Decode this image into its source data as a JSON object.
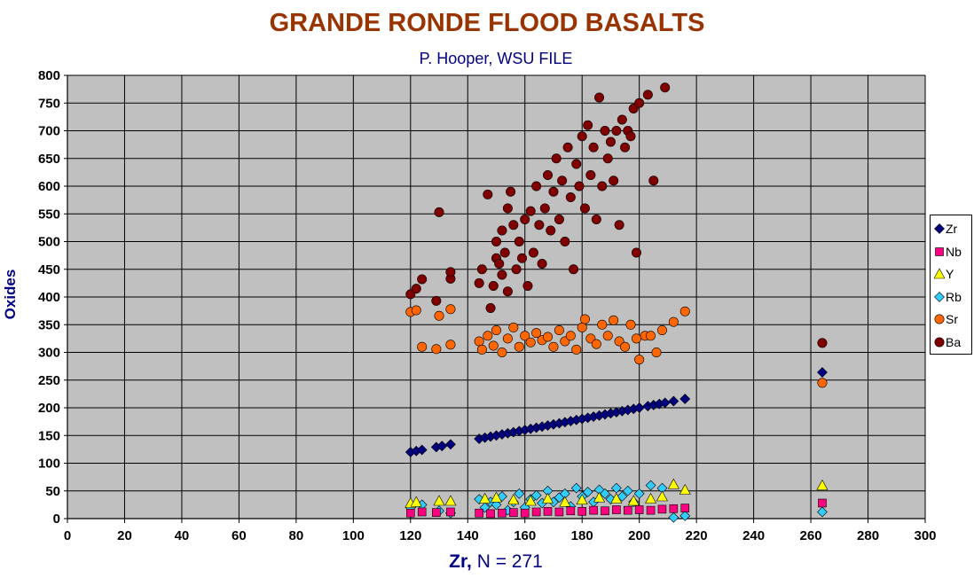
{
  "chart_data": {
    "type": "scatter",
    "title": "GRANDE RONDE FLOOD BASALTS",
    "subtitle_author": "P. Hooper,",
    "subtitle_org": "WSU FILE",
    "xlabel_bold": "Zr,",
    "xlabel_rest": "N = 271",
    "ylabel": "Oxides",
    "xlim": [
      0,
      300
    ],
    "ylim": [
      0,
      800
    ],
    "xticks": [
      0,
      20,
      40,
      60,
      80,
      100,
      120,
      140,
      160,
      180,
      200,
      220,
      240,
      260,
      280,
      300
    ],
    "yticks": [
      0,
      50,
      100,
      150,
      200,
      250,
      300,
      350,
      400,
      450,
      500,
      550,
      600,
      650,
      700,
      750,
      800
    ],
    "grid": true,
    "legend_position": "right",
    "colors": {
      "plot_bg": "#c0c0c0",
      "grid": "#000000",
      "Zr": "#000080",
      "Nb": "#ff0080",
      "Y": "#ffff00",
      "Rb": "#33ccff",
      "Sr": "#ff6600",
      "Ba": "#800000"
    },
    "series": [
      {
        "name": "Zr",
        "marker": "diamond",
        "points": [
          [
            120,
            120
          ],
          [
            122,
            122
          ],
          [
            124,
            124
          ],
          [
            129,
            129
          ],
          [
            131,
            131
          ],
          [
            134,
            134
          ],
          [
            144,
            144
          ],
          [
            146,
            146
          ],
          [
            148,
            148
          ],
          [
            150,
            150
          ],
          [
            152,
            152
          ],
          [
            154,
            154
          ],
          [
            156,
            156
          ],
          [
            158,
            158
          ],
          [
            160,
            160
          ],
          [
            162,
            162
          ],
          [
            164,
            164
          ],
          [
            166,
            166
          ],
          [
            168,
            168
          ],
          [
            170,
            170
          ],
          [
            172,
            172
          ],
          [
            174,
            174
          ],
          [
            176,
            176
          ],
          [
            178,
            178
          ],
          [
            180,
            180
          ],
          [
            182,
            182
          ],
          [
            184,
            184
          ],
          [
            186,
            186
          ],
          [
            188,
            188
          ],
          [
            190,
            190
          ],
          [
            192,
            192
          ],
          [
            194,
            194
          ],
          [
            196,
            196
          ],
          [
            198,
            198
          ],
          [
            200,
            200
          ],
          [
            203,
            203
          ],
          [
            205,
            205
          ],
          [
            207,
            207
          ],
          [
            209,
            209
          ],
          [
            212,
            212
          ],
          [
            216,
            216
          ],
          [
            264,
            264
          ]
        ]
      },
      {
        "name": "Nb",
        "marker": "square",
        "points": [
          [
            120,
            10
          ],
          [
            124,
            12
          ],
          [
            129,
            11
          ],
          [
            134,
            12
          ],
          [
            144,
            10
          ],
          [
            148,
            9
          ],
          [
            152,
            10
          ],
          [
            156,
            11
          ],
          [
            160,
            10
          ],
          [
            164,
            12
          ],
          [
            168,
            13
          ],
          [
            172,
            12
          ],
          [
            176,
            14
          ],
          [
            180,
            13
          ],
          [
            184,
            15
          ],
          [
            188,
            14
          ],
          [
            192,
            16
          ],
          [
            196,
            15
          ],
          [
            200,
            16
          ],
          [
            204,
            15
          ],
          [
            208,
            17
          ],
          [
            212,
            18
          ],
          [
            216,
            19
          ],
          [
            264,
            28
          ]
        ]
      },
      {
        "name": "Y",
        "marker": "triangle",
        "points": [
          [
            120,
            28
          ],
          [
            122,
            30
          ],
          [
            130,
            32
          ],
          [
            134,
            32
          ],
          [
            146,
            36
          ],
          [
            150,
            38
          ],
          [
            156,
            34
          ],
          [
            162,
            32
          ],
          [
            168,
            36
          ],
          [
            174,
            30
          ],
          [
            180,
            34
          ],
          [
            186,
            38
          ],
          [
            192,
            36
          ],
          [
            198,
            32
          ],
          [
            204,
            36
          ],
          [
            208,
            40
          ],
          [
            212,
            62
          ],
          [
            216,
            52
          ],
          [
            264,
            60
          ]
        ]
      },
      {
        "name": "Rb",
        "marker": "diamond",
        "points": [
          [
            120,
            20
          ],
          [
            124,
            25
          ],
          [
            130,
            14
          ],
          [
            134,
            10
          ],
          [
            144,
            35
          ],
          [
            146,
            20
          ],
          [
            148,
            30
          ],
          [
            150,
            25
          ],
          [
            152,
            40
          ],
          [
            154,
            15
          ],
          [
            156,
            30
          ],
          [
            158,
            45
          ],
          [
            160,
            20
          ],
          [
            162,
            35
          ],
          [
            164,
            42
          ],
          [
            166,
            28
          ],
          [
            168,
            50
          ],
          [
            170,
            30
          ],
          [
            172,
            38
          ],
          [
            174,
            45
          ],
          [
            176,
            22
          ],
          [
            178,
            55
          ],
          [
            180,
            40
          ],
          [
            182,
            48
          ],
          [
            184,
            30
          ],
          [
            186,
            52
          ],
          [
            188,
            45
          ],
          [
            190,
            35
          ],
          [
            192,
            55
          ],
          [
            194,
            40
          ],
          [
            196,
            50
          ],
          [
            198,
            30
          ],
          [
            200,
            45
          ],
          [
            204,
            60
          ],
          [
            208,
            55
          ],
          [
            212,
            2
          ],
          [
            216,
            5
          ],
          [
            264,
            12
          ]
        ]
      },
      {
        "name": "Sr",
        "marker": "circle",
        "points": [
          [
            120,
            373
          ],
          [
            122,
            376
          ],
          [
            124,
            310
          ],
          [
            129,
            306
          ],
          [
            130,
            366
          ],
          [
            134,
            314
          ],
          [
            134,
            378
          ],
          [
            144,
            320
          ],
          [
            145,
            305
          ],
          [
            147,
            330
          ],
          [
            149,
            312
          ],
          [
            150,
            340
          ],
          [
            152,
            300
          ],
          [
            154,
            325
          ],
          [
            156,
            345
          ],
          [
            158,
            310
          ],
          [
            160,
            330
          ],
          [
            162,
            318
          ],
          [
            164,
            335
          ],
          [
            166,
            322
          ],
          [
            168,
            328
          ],
          [
            170,
            310
          ],
          [
            172,
            340
          ],
          [
            174,
            320
          ],
          [
            176,
            330
          ],
          [
            178,
            305
          ],
          [
            180,
            345
          ],
          [
            181,
            360
          ],
          [
            183,
            325
          ],
          [
            185,
            315
          ],
          [
            187,
            350
          ],
          [
            189,
            330
          ],
          [
            191,
            358
          ],
          [
            193,
            320
          ],
          [
            195,
            310
          ],
          [
            197,
            350
          ],
          [
            199,
            325
          ],
          [
            200,
            287
          ],
          [
            202,
            330
          ],
          [
            204,
            330
          ],
          [
            206,
            300
          ],
          [
            208,
            340
          ],
          [
            212,
            355
          ],
          [
            216,
            374
          ],
          [
            264,
            245
          ]
        ]
      },
      {
        "name": "Ba",
        "marker": "circle",
        "points": [
          [
            120,
            405
          ],
          [
            122,
            415
          ],
          [
            124,
            432
          ],
          [
            129,
            393
          ],
          [
            130,
            553
          ],
          [
            134,
            433
          ],
          [
            134,
            445
          ],
          [
            144,
            425
          ],
          [
            145,
            450
          ],
          [
            147,
            585
          ],
          [
            148,
            380
          ],
          [
            149,
            420
          ],
          [
            150,
            470
          ],
          [
            150,
            500
          ],
          [
            151,
            460
          ],
          [
            152,
            440
          ],
          [
            152,
            520
          ],
          [
            153,
            480
          ],
          [
            154,
            560
          ],
          [
            154,
            410
          ],
          [
            155,
            590
          ],
          [
            156,
            530
          ],
          [
            157,
            450
          ],
          [
            158,
            500
          ],
          [
            159,
            470
          ],
          [
            160,
            540
          ],
          [
            161,
            420
          ],
          [
            162,
            555
          ],
          [
            163,
            480
          ],
          [
            164,
            600
          ],
          [
            165,
            530
          ],
          [
            166,
            460
          ],
          [
            167,
            560
          ],
          [
            168,
            620
          ],
          [
            169,
            520
          ],
          [
            170,
            590
          ],
          [
            171,
            650
          ],
          [
            172,
            540
          ],
          [
            173,
            610
          ],
          [
            174,
            500
          ],
          [
            175,
            670
          ],
          [
            176,
            580
          ],
          [
            177,
            450
          ],
          [
            178,
            640
          ],
          [
            179,
            600
          ],
          [
            180,
            690
          ],
          [
            181,
            560
          ],
          [
            182,
            710
          ],
          [
            183,
            620
          ],
          [
            184,
            670
          ],
          [
            185,
            540
          ],
          [
            186,
            760
          ],
          [
            187,
            600
          ],
          [
            188,
            700
          ],
          [
            189,
            650
          ],
          [
            190,
            680
          ],
          [
            191,
            610
          ],
          [
            192,
            700
          ],
          [
            193,
            530
          ],
          [
            194,
            720
          ],
          [
            195,
            670
          ],
          [
            196,
            700
          ],
          [
            197,
            690
          ],
          [
            198,
            740
          ],
          [
            199,
            480
          ],
          [
            200,
            750
          ],
          [
            203,
            765
          ],
          [
            205,
            610
          ],
          [
            209,
            778
          ],
          [
            264,
            317
          ]
        ]
      }
    ]
  }
}
